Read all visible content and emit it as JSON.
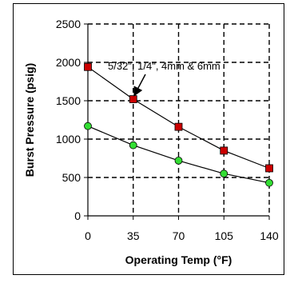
{
  "chart_data": {
    "type": "line",
    "xlabel": "Operating Temp (°F)",
    "ylabel": "Burst Pressure (psig)",
    "x": [
      0,
      35,
      70,
      105,
      140
    ],
    "xlim": [
      0,
      140
    ],
    "ylim": [
      0,
      2500
    ],
    "x_ticks": [
      "0",
      "35",
      "70",
      "105",
      "140"
    ],
    "y_ticks": [
      "0",
      "500",
      "1000",
      "1500",
      "2000",
      "2500"
    ],
    "grid": true,
    "series": [
      {
        "values": [
          1940,
          1520,
          1160,
          850,
          620
        ],
        "marker": "square",
        "color": "#cc0000"
      },
      {
        "values": [
          1170,
          920,
          720,
          550,
          430
        ],
        "marker": "circle",
        "color": "#33dd33"
      }
    ],
    "annotations": [
      {
        "text": "5/32\", 1/4\", 4mm & 6mm",
        "points_to": {
          "series": 0,
          "x": 35
        }
      }
    ]
  }
}
